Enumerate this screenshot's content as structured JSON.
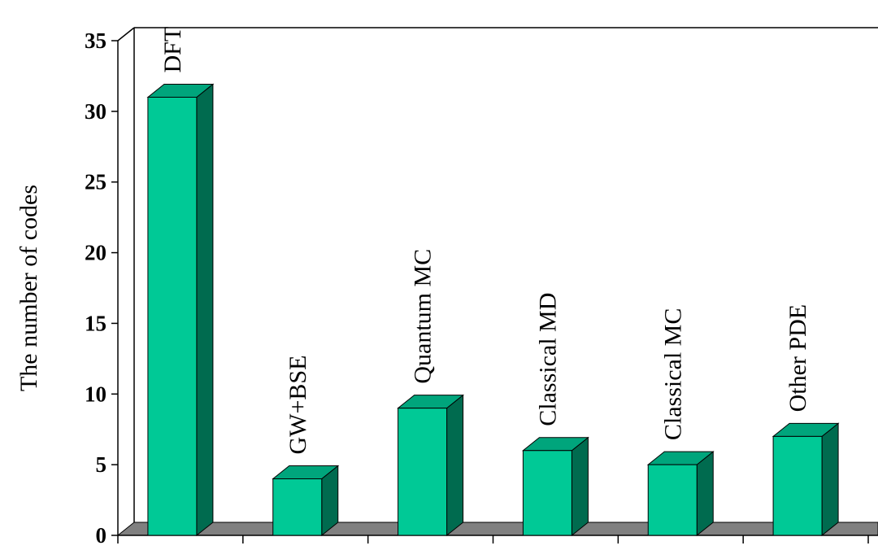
{
  "chart_data": {
    "type": "bar",
    "title": "",
    "xlabel": "",
    "ylabel": "The number of codes",
    "categories": [
      "DFT",
      "GW+BSE",
      "Quantum MC",
      "Classical MD",
      "Classical MC",
      "Other PDE"
    ],
    "values": [
      31,
      4,
      9,
      6,
      5,
      7
    ],
    "ylim": [
      0,
      35
    ],
    "yticks": [
      "0",
      "5",
      "10",
      "15",
      "20",
      "25",
      "30",
      "35"
    ],
    "grid": false,
    "legend": "none",
    "three_d": true
  },
  "colors": {
    "bar_front": "#00c996",
    "bar_top": "#00a57c",
    "bar_side": "#006b4f",
    "floor": "#808080",
    "axis": "#000000",
    "background": "#ffffff"
  }
}
